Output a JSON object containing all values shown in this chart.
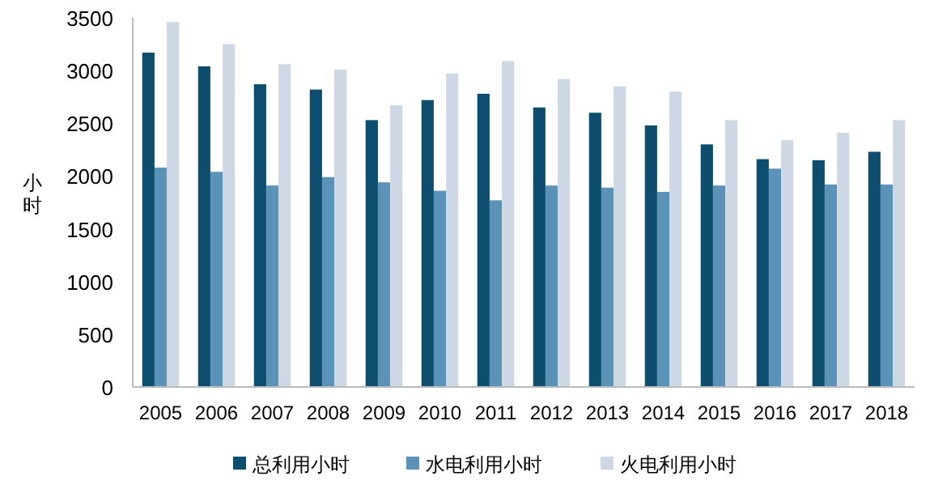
{
  "chart_data": {
    "type": "bar",
    "ylabel": "小时",
    "categories": [
      "2005",
      "2006",
      "2007",
      "2008",
      "2009",
      "2010",
      "2011",
      "2012",
      "2013",
      "2014",
      "2015",
      "2016",
      "2017",
      "2018"
    ],
    "series": [
      {
        "name": "总利用小时",
        "color": "#0d4d6d",
        "values": [
          3170,
          3040,
          2870,
          2820,
          2530,
          2720,
          2780,
          2650,
          2600,
          2480,
          2300,
          2160,
          2150,
          2230
        ]
      },
      {
        "name": "水电利用小时",
        "color": "#5b93b8",
        "values": [
          2080,
          2040,
          1910,
          1990,
          1940,
          1860,
          1770,
          1910,
          1890,
          1850,
          1910,
          2070,
          1920,
          1920
        ]
      },
      {
        "name": "火电利用小时",
        "color": "#cdd8e4",
        "values": [
          3460,
          3250,
          3060,
          3010,
          2670,
          2970,
          3090,
          2920,
          2850,
          2800,
          2530,
          2340,
          2410,
          2530
        ]
      }
    ],
    "ylim": [
      0,
      3500
    ],
    "yticks": [
      0,
      500,
      1000,
      1500,
      2000,
      2500,
      3000,
      3500
    ],
    "legend": "bottom"
  }
}
